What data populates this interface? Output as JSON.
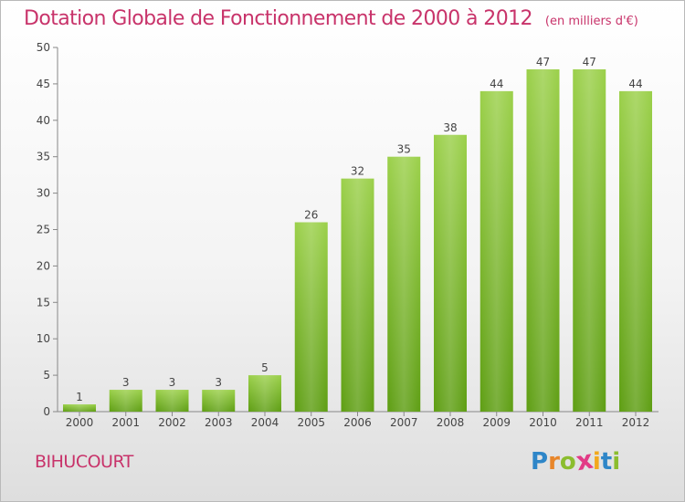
{
  "title": "Dotation Globale de Fonctionnement de 2000 à 2012",
  "unit": "(en milliers d'€)",
  "commune": "BIHUCOURT",
  "logo": {
    "letters": [
      "P",
      "r",
      "o",
      "x",
      "i",
      "t",
      "i"
    ],
    "colors": [
      "#2e86c8",
      "#e8862a",
      "#8bbd2e",
      "#e23a86",
      "#f2a81d",
      "#2e86c8",
      "#8bbd2e"
    ]
  },
  "colors": {
    "bar_top": "#9bd04a",
    "bar_bottom": "#5e9e13",
    "accent": "#c8336a"
  },
  "chart_data": {
    "type": "bar",
    "categories": [
      "2000",
      "2001",
      "2002",
      "2003",
      "2004",
      "2005",
      "2006",
      "2007",
      "2008",
      "2009",
      "2010",
      "2011",
      "2012"
    ],
    "values": [
      1,
      3,
      3,
      3,
      5,
      26,
      32,
      35,
      38,
      44,
      47,
      47,
      44
    ],
    "ylim": [
      0,
      50
    ],
    "yticks": [
      0,
      5,
      10,
      15,
      20,
      25,
      30,
      35,
      40,
      45,
      50
    ],
    "grid": false,
    "data_labels": true
  }
}
